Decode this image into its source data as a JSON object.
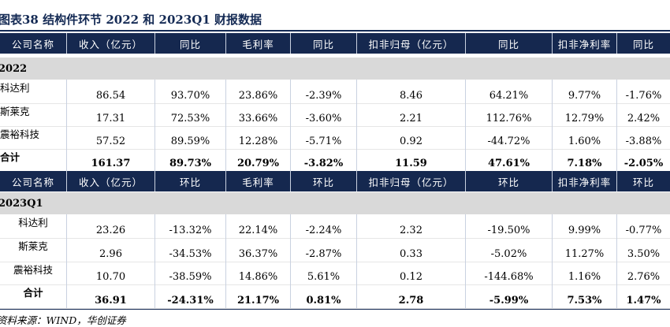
{
  "title": "图表38  结构件环节 2022 和 2023Q1 财报数据",
  "header_2022": [
    "公司名称",
    "收入（亿元）",
    "同比",
    "毛利率",
    "同比",
    "扣非归母（亿元）",
    "同比",
    "扣非净利率",
    "同比"
  ],
  "band_2022": "2022",
  "rows_2022": [
    [
      "科达利",
      "86.54",
      "93.70%",
      "23.86%",
      "-2.39%",
      "8.46",
      "64.21%",
      "9.77%",
      "-1.76%"
    ],
    [
      "斯莱克",
      "17.31",
      "72.53%",
      "33.66%",
      "-3.60%",
      "2.21",
      "112.76%",
      "12.79%",
      "2.42%"
    ],
    [
      "震裕科技",
      "57.52",
      "89.59%",
      "12.28%",
      "-5.71%",
      "0.92",
      "-44.72%",
      "1.60%",
      "-3.88%"
    ],
    [
      "合计",
      "161.37",
      "89.73%",
      "20.79%",
      "-3.82%",
      "11.59",
      "47.61%",
      "7.18%",
      "-2.05%"
    ]
  ],
  "header_q1": [
    "公司名称",
    "收入（亿元）",
    "环比",
    "毛利率",
    "环比",
    "扣非归母（亿元）",
    "环比",
    "扣非净利率",
    "环比"
  ],
  "band_q1": "2023Q1",
  "rows_q1": [
    [
      "科达利",
      "23.26",
      "-13.32%",
      "22.14%",
      "-2.24%",
      "2.32",
      "-19.50%",
      "9.99%",
      "-0.77%"
    ],
    [
      "斯莱克",
      "2.96",
      "-34.53%",
      "36.37%",
      "-2.87%",
      "0.33",
      "-5.02%",
      "11.27%",
      "3.50%"
    ],
    [
      "震裕科技",
      "10.70",
      "-38.59%",
      "14.86%",
      "5.61%",
      "0.12",
      "-144.68%",
      "1.16%",
      "2.76%"
    ],
    [
      "合计",
      "36.91",
      "-24.31%",
      "21.17%",
      "0.81%",
      "2.78",
      "-5.99%",
      "7.53%",
      "1.47%"
    ]
  ],
  "footnote": "资料来源：WIND，华创证券"
}
